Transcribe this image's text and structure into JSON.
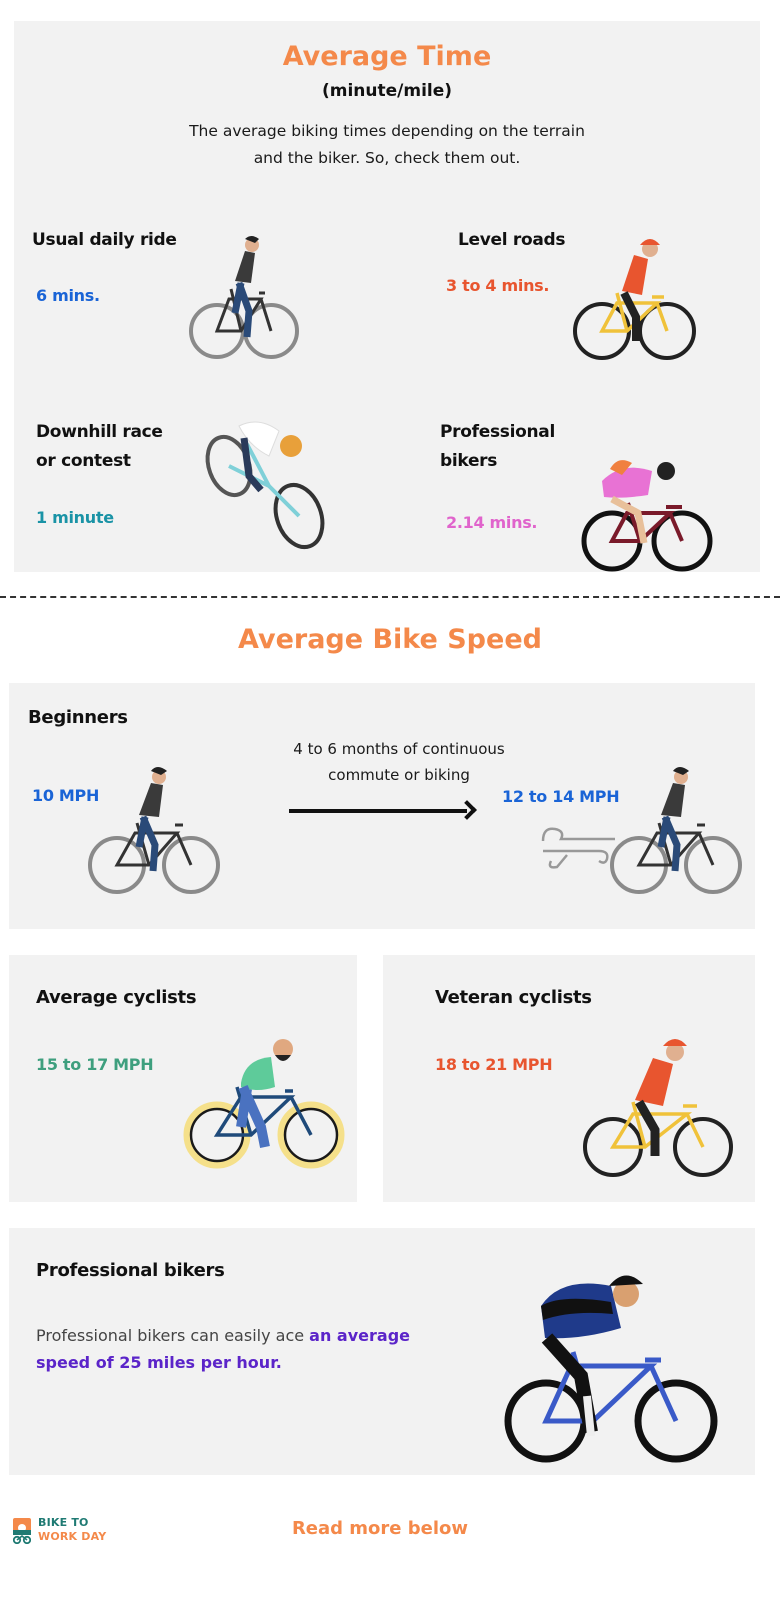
{
  "section1": {
    "title": "Average Time",
    "subtitle": "(minute/mile)",
    "intro_line1": "The average biking times depending on the terrain",
    "intro_line2": "and the biker. So, check them out.",
    "items": [
      {
        "label_line1": "Usual daily ride",
        "label_line2": "",
        "value": "6 mins.",
        "color": "#1a64d6",
        "illustration": "commuter-bike-icon"
      },
      {
        "label_line1": "Level roads",
        "label_line2": "",
        "value": "3 to 4 mins.",
        "color": "#e8552f",
        "illustration": "road-cyclist-icon"
      },
      {
        "label_line1": "Downhill race",
        "label_line2": "or contest",
        "value": "1 minute",
        "color": "#1a93a6",
        "illustration": "downhill-racer-icon"
      },
      {
        "label_line1": "Professional",
        "label_line2": "bikers",
        "value": "2.14 mins.",
        "color": "#e064cc",
        "illustration": "pro-cyclist-icon"
      }
    ]
  },
  "section2": {
    "title": "Average Bike Speed",
    "beginners": {
      "label": "Beginners",
      "start_value": "10 MPH",
      "transition_line1": "4 to 6 months of continuous",
      "transition_line2": "commute or biking",
      "end_value": "12 to 14 MPH",
      "color": "#1a64d6"
    },
    "average": {
      "label": "Average cyclists",
      "value": "15 to 17 MPH",
      "color": "#3e9f7e"
    },
    "veteran": {
      "label": "Veteran cyclists",
      "value": "18 to 21 MPH",
      "color": "#e8552f"
    },
    "professional": {
      "label": "Professional bikers",
      "text_plain": "Professional bikers can easily ace ",
      "text_highlight": "an average speed of 25 miles per hour.",
      "highlight_color": "#5b24c9"
    }
  },
  "footer": {
    "logo_line1": "BIKE TO",
    "logo_line2": "WORK DAY",
    "read_more": "Read more below"
  },
  "colors": {
    "accent": "#f4894a",
    "panel_bg": "#f2f2f2"
  }
}
